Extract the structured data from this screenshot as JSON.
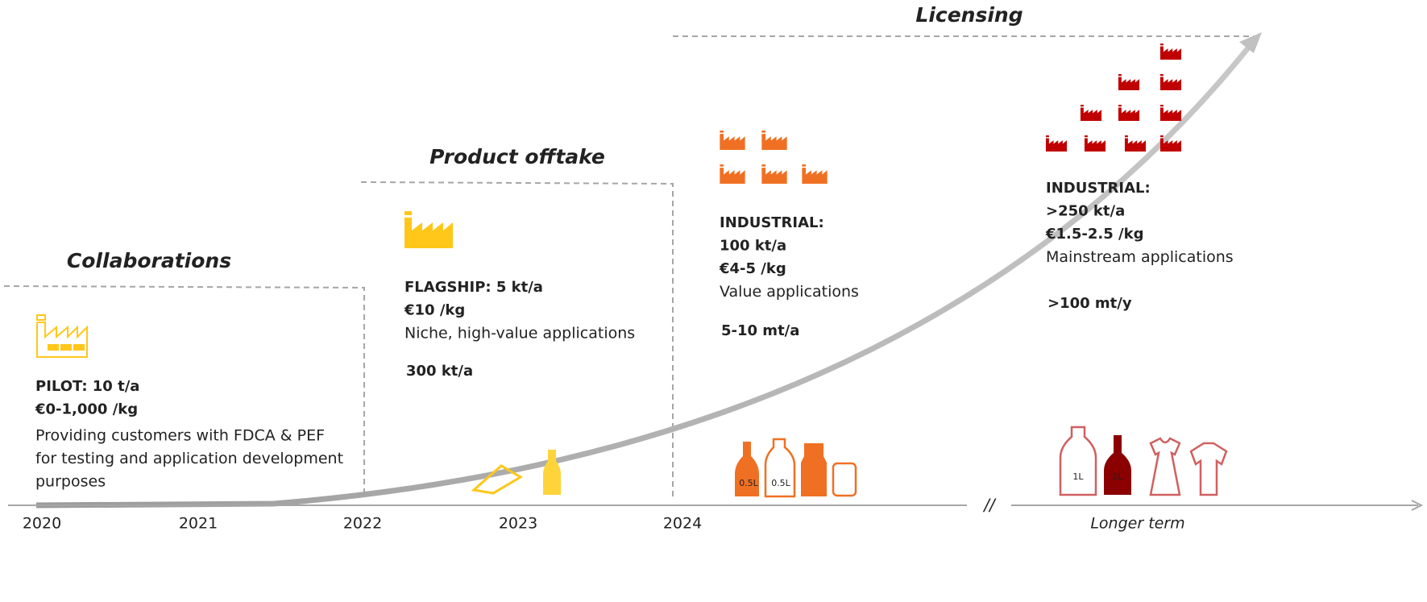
{
  "phases": [
    {
      "label": "Collaborations",
      "bold": [
        "PILOT: 10 t/a",
        "€0-1,000 /kg"
      ],
      "text": [
        "Providing customers with FDCA & PEF",
        "for testing and application development",
        "purposes"
      ]
    },
    {
      "label": "Product offtake",
      "bold": [
        "FLAGSHIP: 5 kt/a",
        "€10 /kg"
      ],
      "text": [
        "Niche, high-value applications"
      ],
      "volume": "300 kt/a"
    },
    {
      "bold": [
        "INDUSTRIAL:",
        "100 kt/a",
        "€4-5 /kg"
      ],
      "text": [
        "Value applications"
      ],
      "volume": "5-10 mt/a"
    },
    {
      "label": "Licensing",
      "bold": [
        "INDUSTRIAL:",
        ">250 kt/a",
        "€1.5-2.5 /kg"
      ],
      "text": [
        "Mainstream applications"
      ],
      "volume": ">100 mt/y"
    }
  ],
  "timeline": [
    "2020",
    "2021",
    "2022",
    "2023",
    "2024"
  ],
  "axis_break": "//",
  "longer_term": "Longer term",
  "bottle_labels": [
    "0.5L",
    "0.5L",
    "1L",
    "1L"
  ]
}
